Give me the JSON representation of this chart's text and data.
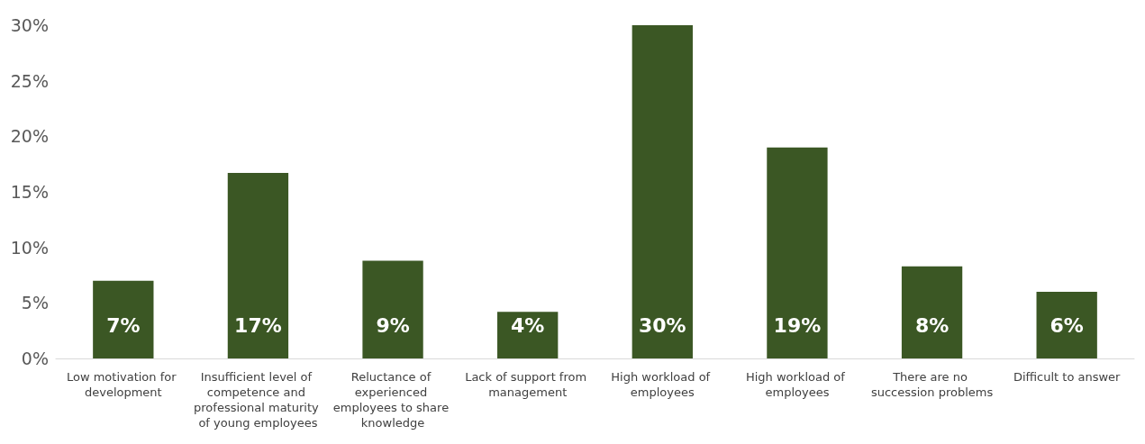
{
  "chart_data": {
    "type": "bar",
    "categories": [
      "Low motivation for development",
      "Insufficient level of competence and professional maturity of young employees",
      "Reluctance of experienced employees to share knowledge",
      "Lack of support from management",
      "High workload of employees",
      "High workload of employees",
      "There are no succession problems",
      "Difficult to answer"
    ],
    "values": [
      7,
      16.7,
      8.8,
      4.2,
      30,
      19,
      8.3,
      6
    ],
    "value_labels": [
      "7%",
      "17%",
      "9%",
      "4%",
      "30%",
      "19%",
      "8%",
      "6%"
    ],
    "color": "#3b5724",
    "ylim": [
      0,
      30
    ],
    "yticks": [
      {
        "value": 0,
        "label": "0%"
      },
      {
        "value": 5,
        "label": "5%"
      },
      {
        "value": 10,
        "label": "10%"
      },
      {
        "value": 15,
        "label": "15%"
      },
      {
        "value": 20,
        "label": "20%"
      },
      {
        "value": 25,
        "label": "25%"
      },
      {
        "value": 30,
        "label": "30%"
      }
    ],
    "grid": false
  }
}
